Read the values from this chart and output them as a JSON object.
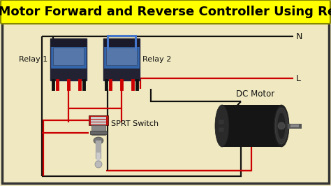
{
  "title": "DC Motor Forward and Reverse Controller Using Relay",
  "title_fontsize": 13,
  "title_bg": "#FFFF00",
  "title_color": "#000000",
  "bg_color": "#EFE8C0",
  "border_color": "#333333",
  "relay1_label": "Relay 1",
  "relay2_label": "Relay 2",
  "sprt_label": "SPRT Switch",
  "motor_label": "DC Motor",
  "N_label": "N",
  "L_label": "L",
  "wire_black": "#111111",
  "wire_red": "#CC0000",
  "wire_blue": "#4477CC",
  "relay_blue": "#3366AA",
  "relay_dark": "#1A1A2A",
  "relay_mid": "#555577"
}
